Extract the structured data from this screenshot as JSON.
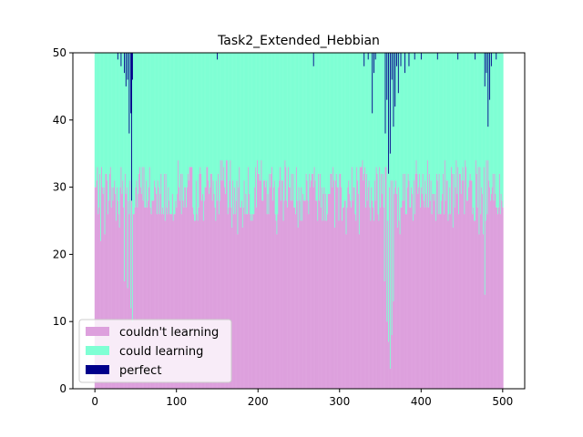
{
  "chart_data": {
    "type": "bar",
    "stacked": true,
    "title": "Task2_Extended_Hebbian",
    "xlabel": "",
    "ylabel": "",
    "xlim": [
      -27,
      527
    ],
    "ylim": [
      0,
      50
    ],
    "x_ticks": [
      0,
      100,
      200,
      300,
      400,
      500
    ],
    "y_ticks": [
      0,
      10,
      20,
      30,
      40,
      50
    ],
    "grid": false,
    "legend_position": "lower-left",
    "n_bars": 501,
    "series": [
      {
        "name": "couldn't learning",
        "color": "#dda0dd",
        "typical_range": [
          21,
          34
        ],
        "notable_values": [
          {
            "x": 36,
            "value": 16
          },
          {
            "x": 40,
            "value": 15
          },
          {
            "x": 44,
            "value": 12
          },
          {
            "x": 46,
            "value": 10
          },
          {
            "x": 355,
            "value": 16
          },
          {
            "x": 358,
            "value": 10
          },
          {
            "x": 360,
            "value": 7
          },
          {
            "x": 362,
            "value": 3
          },
          {
            "x": 364,
            "value": 8
          },
          {
            "x": 366,
            "value": 13
          },
          {
            "x": 478,
            "value": 14
          }
        ]
      },
      {
        "name": "could learning",
        "color": "#7fffd4",
        "description": "remainder of total 50 after other series"
      },
      {
        "name": "perfect",
        "color": "#00008b",
        "typical_value": 0,
        "notable_values": [
          {
            "x": 28,
            "value": 1
          },
          {
            "x": 32,
            "value": 2
          },
          {
            "x": 36,
            "value": 3
          },
          {
            "x": 38,
            "value": 5
          },
          {
            "x": 40,
            "value": 4
          },
          {
            "x": 42,
            "value": 12
          },
          {
            "x": 44,
            "value": 9
          },
          {
            "x": 45,
            "value": 22
          },
          {
            "x": 46,
            "value": 4
          },
          {
            "x": 150,
            "value": 1
          },
          {
            "x": 268,
            "value": 2
          },
          {
            "x": 330,
            "value": 2
          },
          {
            "x": 335,
            "value": 1
          },
          {
            "x": 340,
            "value": 9
          },
          {
            "x": 342,
            "value": 3
          },
          {
            "x": 344,
            "value": 1
          },
          {
            "x": 356,
            "value": 12
          },
          {
            "x": 358,
            "value": 7
          },
          {
            "x": 360,
            "value": 18
          },
          {
            "x": 362,
            "value": 15
          },
          {
            "x": 364,
            "value": 4
          },
          {
            "x": 366,
            "value": 11
          },
          {
            "x": 368,
            "value": 8
          },
          {
            "x": 370,
            "value": 2
          },
          {
            "x": 372,
            "value": 6
          },
          {
            "x": 375,
            "value": 2
          },
          {
            "x": 380,
            "value": 3
          },
          {
            "x": 385,
            "value": 2
          },
          {
            "x": 392,
            "value": 1
          },
          {
            "x": 400,
            "value": 1
          },
          {
            "x": 420,
            "value": 1
          },
          {
            "x": 445,
            "value": 1
          },
          {
            "x": 466,
            "value": 1
          },
          {
            "x": 478,
            "value": 5
          },
          {
            "x": 480,
            "value": 3
          },
          {
            "x": 482,
            "value": 11
          },
          {
            "x": 484,
            "value": 7
          },
          {
            "x": 486,
            "value": 2
          },
          {
            "x": 492,
            "value": 1
          }
        ]
      }
    ],
    "legend": [
      {
        "label": "couldn't learning",
        "color": "#dda0dd"
      },
      {
        "label": "could learning",
        "color": "#7fffd4"
      },
      {
        "label": "perfect",
        "color": "#00008b"
      }
    ]
  }
}
